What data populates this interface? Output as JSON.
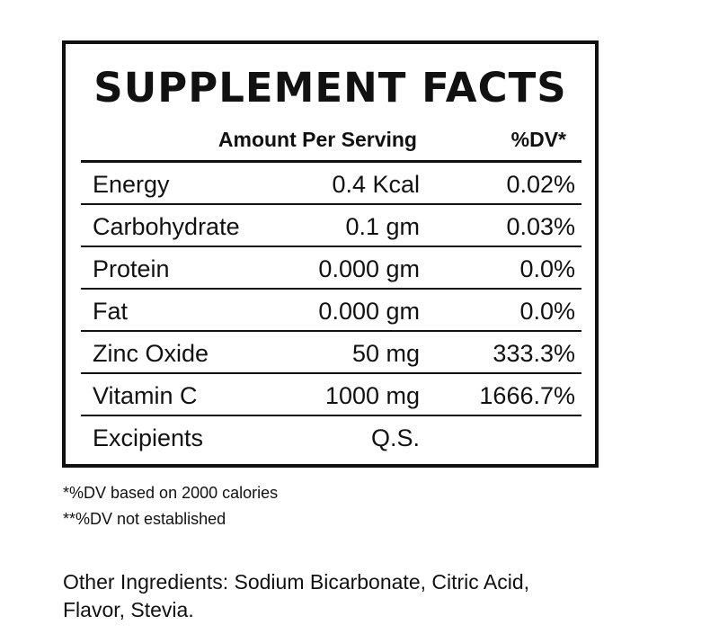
{
  "panel": {
    "title": "SUPPLEMENT FACTS",
    "header_amount": "Amount Per Serving",
    "header_dv": "%DV*",
    "rows": [
      {
        "name": "Energy",
        "amount": "0.4 Kcal",
        "dv": "0.02%"
      },
      {
        "name": "Carbohydrate",
        "amount": "0.1 gm",
        "dv": "0.03%"
      },
      {
        "name": "Protein",
        "amount": "0.000 gm",
        "dv": "0.0%"
      },
      {
        "name": "Fat",
        "amount": "0.000 gm",
        "dv": "0.0%"
      },
      {
        "name": "Zinc Oxide",
        "amount": "50 mg",
        "dv": "333.3%"
      },
      {
        "name": "Vitamin C",
        "amount": "1000 mg",
        "dv": "1666.7%"
      },
      {
        "name": "Excipients",
        "amount": "Q.S.",
        "dv": ""
      }
    ]
  },
  "footnotes": [
    "*%DV based on 2000 calories",
    "**%DV not established"
  ],
  "other_ingredients": "Other Ingredients: Sodium Bicarbonate, Citric Acid, Flavor, Stevia."
}
